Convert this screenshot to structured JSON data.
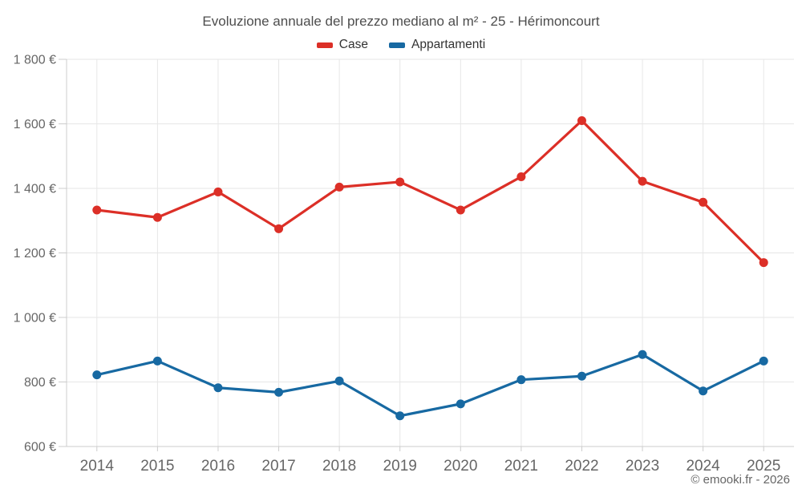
{
  "header": {
    "title": "Evoluzione annuale del prezzo mediano al m² - 25 - Hérimoncourt"
  },
  "legend": {
    "items": [
      {
        "label": "Case",
        "color": "#dc2f27"
      },
      {
        "label": "Appartamenti",
        "color": "#1769a2"
      }
    ]
  },
  "footer": {
    "credit": "© emooki.fr - 2026"
  },
  "chart_data": {
    "type": "line",
    "title": "Evoluzione annuale del prezzo mediano al m² - 25 - Hérimoncourt",
    "categories": [
      "2014",
      "2015",
      "2016",
      "2017",
      "2018",
      "2019",
      "2020",
      "2021",
      "2022",
      "2023",
      "2024",
      "2025"
    ],
    "series": [
      {
        "name": "Case",
        "color": "#dc2f27",
        "values": [
          1333,
          1310,
          1389,
          1275,
          1404,
          1420,
          1333,
          1436,
          1610,
          1422,
          1357,
          1170
        ]
      },
      {
        "name": "Appartamenti",
        "color": "#1769a2",
        "values": [
          822,
          865,
          782,
          768,
          803,
          695,
          732,
          807,
          818,
          885,
          772,
          865
        ]
      }
    ],
    "xlabel": "",
    "ylabel": "",
    "ylim": [
      600,
      1800
    ],
    "ytick_values": [
      600,
      800,
      1000,
      1200,
      1400,
      1600,
      1800
    ],
    "ytick_labels": [
      "600 €",
      "800 €",
      "1 000 €",
      "1 200 €",
      "1 400 €",
      "1 600 €",
      "1 800 €"
    ],
    "grid": true,
    "legend_position": "top",
    "colors": {
      "gridline": "#e6e6e6",
      "axis": "#cccccc",
      "tick_label": "#666666",
      "title_text": "#4d4d4d",
      "legend_text": "#333333"
    }
  }
}
